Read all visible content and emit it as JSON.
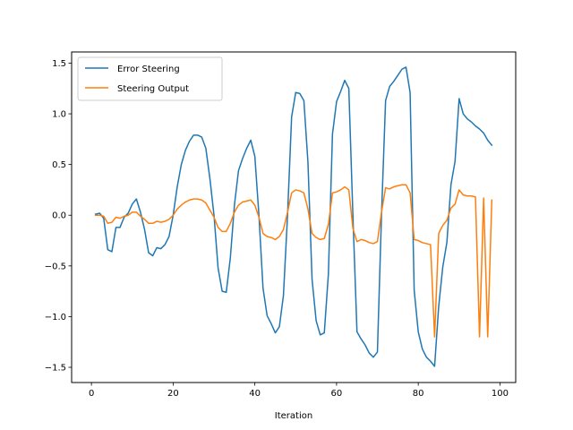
{
  "chart_data": {
    "type": "line",
    "title": "",
    "xlabel": "Iteration",
    "ylabel": "",
    "xlim": [
      -4.85,
      103.85
    ],
    "ylim": [
      -1.65,
      1.61
    ],
    "xticks": [
      0,
      20,
      40,
      60,
      80,
      100
    ],
    "yticks": [
      -1.5,
      -1.0,
      -0.5,
      0.0,
      0.5,
      1.0,
      1.5
    ],
    "ytick_labels": [
      "−1.5",
      "−1.0",
      "−0.5",
      "0.0",
      "0.5",
      "1.0",
      "1.5"
    ],
    "grid": false,
    "legend": {
      "position": "top-left"
    },
    "series": [
      {
        "name": "Error Steering",
        "color": "#1f77b4",
        "x": [
          1,
          2,
          3,
          4,
          5,
          6,
          7,
          8,
          9,
          10,
          11,
          12,
          13,
          14,
          15,
          16,
          17,
          18,
          19,
          20,
          21,
          22,
          23,
          24,
          25,
          26,
          27,
          28,
          29,
          30,
          31,
          32,
          33,
          34,
          35,
          36,
          37,
          38,
          39,
          40,
          41,
          42,
          43,
          44,
          45,
          46,
          47,
          48,
          49,
          50,
          51,
          52,
          53,
          54,
          55,
          56,
          57,
          58,
          59,
          60,
          61,
          62,
          63,
          64,
          65,
          66,
          67,
          68,
          69,
          70,
          71,
          72,
          73,
          74,
          75,
          76,
          77,
          78,
          79,
          80,
          81,
          82,
          83,
          84,
          85,
          86,
          87,
          88,
          89,
          90,
          91,
          92,
          93,
          94,
          95,
          96,
          97,
          98
        ],
        "values": [
          0.01,
          0.02,
          -0.03,
          -0.34,
          -0.36,
          -0.12,
          -0.12,
          -0.02,
          0.02,
          0.11,
          0.16,
          0.03,
          -0.14,
          -0.37,
          -0.4,
          -0.32,
          -0.33,
          -0.29,
          -0.21,
          0.0,
          0.28,
          0.5,
          0.64,
          0.73,
          0.79,
          0.79,
          0.77,
          0.66,
          0.36,
          0.0,
          -0.52,
          -0.75,
          -0.76,
          -0.42,
          0.1,
          0.44,
          0.56,
          0.66,
          0.74,
          0.58,
          0.0,
          -0.72,
          -0.99,
          -1.07,
          -1.16,
          -1.1,
          -0.79,
          0.0,
          0.97,
          1.21,
          1.2,
          1.13,
          0.52,
          -0.63,
          -1.04,
          -1.18,
          -1.16,
          -0.58,
          0.8,
          1.12,
          1.22,
          1.33,
          1.25,
          0.0,
          -1.15,
          -1.22,
          -1.28,
          -1.36,
          -1.4,
          -1.35,
          0.0,
          1.13,
          1.27,
          1.32,
          1.38,
          1.44,
          1.46,
          1.21,
          -0.74,
          -1.15,
          -1.32,
          -1.4,
          -1.44,
          -1.49,
          -0.9,
          -0.51,
          -0.27,
          0.3,
          0.53,
          1.15,
          1.0,
          0.95,
          0.92,
          0.88,
          0.85,
          0.81,
          0.74,
          0.69
        ]
      },
      {
        "name": "Steering Output",
        "color": "#ff7f0e",
        "x": [
          1,
          2,
          3,
          4,
          5,
          6,
          7,
          8,
          9,
          10,
          11,
          12,
          13,
          14,
          15,
          16,
          17,
          18,
          19,
          20,
          21,
          22,
          23,
          24,
          25,
          26,
          27,
          28,
          29,
          30,
          31,
          32,
          33,
          34,
          35,
          36,
          37,
          38,
          39,
          40,
          41,
          42,
          43,
          44,
          45,
          46,
          47,
          48,
          49,
          50,
          51,
          52,
          53,
          54,
          55,
          56,
          57,
          58,
          59,
          60,
          61,
          62,
          63,
          64,
          65,
          66,
          67,
          68,
          69,
          70,
          71,
          72,
          73,
          74,
          75,
          76,
          77,
          78,
          79,
          80,
          81,
          82,
          83,
          84,
          85,
          86,
          87,
          88,
          89,
          90,
          91,
          92,
          93,
          94,
          95,
          96,
          97,
          98
        ],
        "values": [
          0.0,
          0.0,
          -0.01,
          -0.08,
          -0.07,
          -0.02,
          -0.03,
          -0.01,
          0.0,
          0.03,
          0.03,
          -0.01,
          -0.04,
          -0.08,
          -0.08,
          -0.06,
          -0.07,
          -0.06,
          -0.04,
          0.0,
          0.06,
          0.1,
          0.13,
          0.15,
          0.16,
          0.16,
          0.15,
          0.12,
          0.05,
          -0.02,
          -0.12,
          -0.16,
          -0.16,
          -0.08,
          0.03,
          0.1,
          0.13,
          0.14,
          0.15,
          0.1,
          -0.02,
          -0.18,
          -0.21,
          -0.22,
          -0.24,
          -0.21,
          -0.14,
          0.03,
          0.22,
          0.25,
          0.24,
          0.22,
          0.06,
          -0.18,
          -0.22,
          -0.24,
          -0.23,
          -0.09,
          0.22,
          0.23,
          0.25,
          0.28,
          0.25,
          -0.13,
          -0.26,
          -0.24,
          -0.25,
          -0.27,
          -0.28,
          -0.26,
          0.03,
          0.27,
          0.26,
          0.28,
          0.29,
          0.3,
          0.3,
          0.22,
          -0.24,
          -0.25,
          -0.27,
          -0.28,
          -0.29,
          -1.2,
          -0.18,
          -0.1,
          -0.05,
          0.07,
          0.11,
          0.25,
          0.2,
          0.19,
          0.19,
          0.18,
          -1.2,
          0.17,
          -1.2,
          0.15
        ]
      }
    ]
  }
}
